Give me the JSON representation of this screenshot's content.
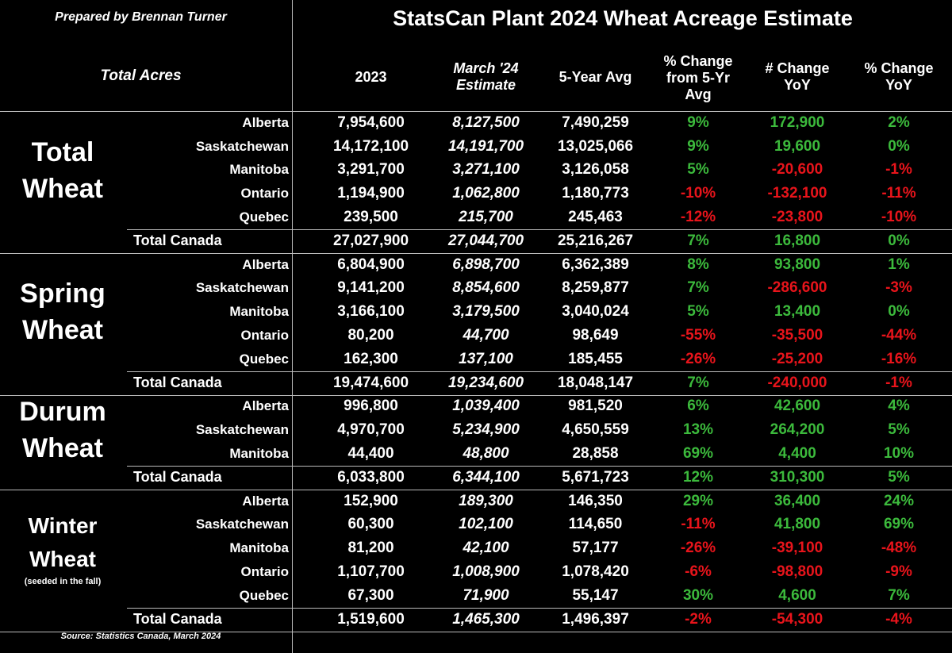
{
  "header": {
    "prepared_by": "Prepared by Brennan Turner",
    "title": "StatsCan Plant 2024 Wheat Acreage Estimate",
    "row_label": "Total Acres",
    "columns": [
      "2023",
      "March '24\nEstimate",
      "5-Year Avg",
      "% Change\nfrom 5-Yr\nAvg",
      "# Change\nYoY",
      "% Change\nYoY"
    ]
  },
  "colors": {
    "positive": "#3cba3c",
    "negative": "#e8141b",
    "background": "#000000",
    "text": "#ffffff"
  },
  "groups": [
    {
      "label": "Total\nWheat",
      "rows": [
        {
          "province": "Alberta",
          "y2023": "7,954,600",
          "est": "8,127,500",
          "avg5": "7,490,259",
          "pct5": "9%",
          "numyoy": "172,900",
          "pctyoy": "2%"
        },
        {
          "province": "Saskatchewan",
          "y2023": "14,172,100",
          "est": "14,191,700",
          "avg5": "13,025,066",
          "pct5": "9%",
          "numyoy": "19,600",
          "pctyoy": "0%"
        },
        {
          "province": "Manitoba",
          "y2023": "3,291,700",
          "est": "3,271,100",
          "avg5": "3,126,058",
          "pct5": "5%",
          "numyoy": "-20,600",
          "pctyoy": "-1%"
        },
        {
          "province": "Ontario",
          "y2023": "1,194,900",
          "est": "1,062,800",
          "avg5": "1,180,773",
          "pct5": "-10%",
          "numyoy": "-132,100",
          "pctyoy": "-11%"
        },
        {
          "province": "Quebec",
          "y2023": "239,500",
          "est": "215,700",
          "avg5": "245,463",
          "pct5": "-12%",
          "numyoy": "-23,800",
          "pctyoy": "-10%"
        }
      ],
      "total": {
        "province": "Total Canada",
        "y2023": "27,027,900",
        "est": "27,044,700",
        "avg5": "25,216,267",
        "pct5": "7%",
        "numyoy": "16,800",
        "pctyoy": "0%"
      }
    },
    {
      "label": "Spring\nWheat",
      "rows": [
        {
          "province": "Alberta",
          "y2023": "6,804,900",
          "est": "6,898,700",
          "avg5": "6,362,389",
          "pct5": "8%",
          "numyoy": "93,800",
          "pctyoy": "1%"
        },
        {
          "province": "Saskatchewan",
          "y2023": "9,141,200",
          "est": "8,854,600",
          "avg5": "8,259,877",
          "pct5": "7%",
          "numyoy": "-286,600",
          "pctyoy": "-3%"
        },
        {
          "province": "Manitoba",
          "y2023": "3,166,100",
          "est": "3,179,500",
          "avg5": "3,040,024",
          "pct5": "5%",
          "numyoy": "13,400",
          "pctyoy": "0%"
        },
        {
          "province": "Ontario",
          "y2023": "80,200",
          "est": "44,700",
          "avg5": "98,649",
          "pct5": "-55%",
          "numyoy": "-35,500",
          "pctyoy": "-44%"
        },
        {
          "province": "Quebec",
          "y2023": "162,300",
          "est": "137,100",
          "avg5": "185,455",
          "pct5": "-26%",
          "numyoy": "-25,200",
          "pctyoy": "-16%"
        }
      ],
      "total": {
        "province": "Total Canada",
        "y2023": "19,474,600",
        "est": "19,234,600",
        "avg5": "18,048,147",
        "pct5": "7%",
        "numyoy": "-240,000",
        "pctyoy": "-1%"
      }
    },
    {
      "label": "Durum\nWheat",
      "rows": [
        {
          "province": "Alberta",
          "y2023": "996,800",
          "est": "1,039,400",
          "avg5": "981,520",
          "pct5": "6%",
          "numyoy": "42,600",
          "pctyoy": "4%"
        },
        {
          "province": "Saskatchewan",
          "y2023": "4,970,700",
          "est": "5,234,900",
          "avg5": "4,650,559",
          "pct5": "13%",
          "numyoy": "264,200",
          "pctyoy": "5%"
        },
        {
          "province": "Manitoba",
          "y2023": "44,400",
          "est": "48,800",
          "avg5": "28,858",
          "pct5": "69%",
          "numyoy": "4,400",
          "pctyoy": "10%"
        }
      ],
      "total": {
        "province": "Total Canada",
        "y2023": "6,033,800",
        "est": "6,344,100",
        "avg5": "5,671,723",
        "pct5": "12%",
        "numyoy": "310,300",
        "pctyoy": "5%"
      }
    },
    {
      "label": "Winter\nWheat",
      "note": "(seeded in the fall)",
      "rows": [
        {
          "province": "Alberta",
          "y2023": "152,900",
          "est": "189,300",
          "avg5": "146,350",
          "pct5": "29%",
          "numyoy": "36,400",
          "pctyoy": "24%"
        },
        {
          "province": "Saskatchewan",
          "y2023": "60,300",
          "est": "102,100",
          "avg5": "114,650",
          "pct5": "-11%",
          "numyoy": "41,800",
          "pctyoy": "69%"
        },
        {
          "province": "Manitoba",
          "y2023": "81,200",
          "est": "42,100",
          "avg5": "57,177",
          "pct5": "-26%",
          "numyoy": "-39,100",
          "pctyoy": "-48%"
        },
        {
          "province": "Ontario",
          "y2023": "1,107,700",
          "est": "1,008,900",
          "avg5": "1,078,420",
          "pct5": "-6%",
          "numyoy": "-98,800",
          "pctyoy": "-9%"
        },
        {
          "province": "Quebec",
          "y2023": "67,300",
          "est": "71,900",
          "avg5": "55,147",
          "pct5": "30%",
          "numyoy": "4,600",
          "pctyoy": "7%"
        }
      ],
      "total": {
        "province": "Total Canada",
        "y2023": "1,519,600",
        "est": "1,465,300",
        "avg5": "1,496,397",
        "pct5": "-2%",
        "numyoy": "-54,300",
        "pctyoy": "-4%"
      }
    }
  ],
  "footer": {
    "source": "Source: Statistics Canada, March 2024"
  }
}
